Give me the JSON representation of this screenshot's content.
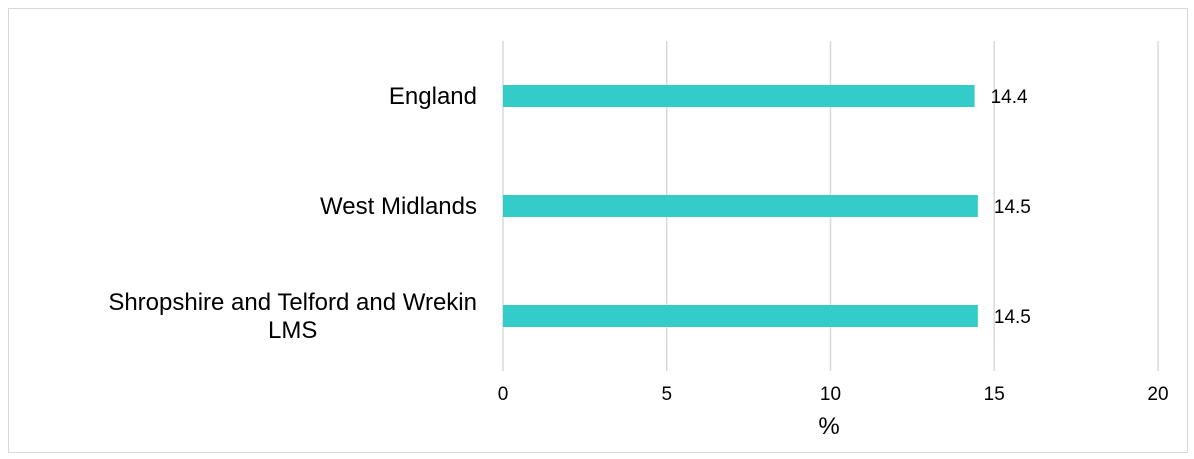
{
  "chart_data": {
    "type": "bar",
    "orientation": "horizontal",
    "categories": [
      "England",
      "West Midlands",
      "Shropshire and Telford and Wrekin LMS"
    ],
    "category_lines": [
      [
        "England"
      ],
      [
        "West Midlands"
      ],
      [
        "Shropshire and Telford and Wrekin",
        "LMS"
      ]
    ],
    "values": [
      14.4,
      14.5,
      14.5
    ],
    "data_labels": [
      "14.4",
      "14.5",
      "14.5"
    ],
    "xlabel": "%",
    "ylabel": "",
    "xlim": [
      0,
      20
    ],
    "xticks": [
      0,
      5,
      10,
      15,
      20
    ],
    "grid": "vertical",
    "legend": "none",
    "bar_color": "#33ccc8",
    "grid_color": "#d9d9d9"
  }
}
